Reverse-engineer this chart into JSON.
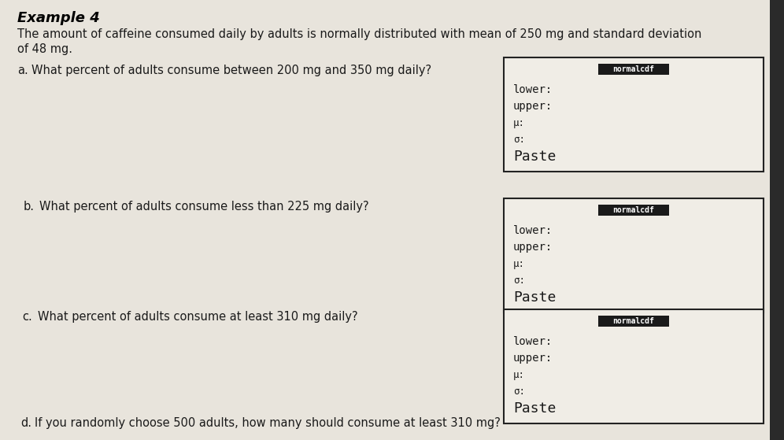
{
  "title": "Example 4",
  "intro_line1": "The amount of caffeine consumed daily by adults is normally distributed with mean of 250 mg and standard deviation",
  "intro_line2": "of 48 mg.",
  "q_a_prefix": "a.",
  "q_a_text": "   What percent of adults consume between 200 mg and 350 mg daily?",
  "q_b_prefix": "b.",
  "q_b_text": "   What percent of adults consume less than 225 mg daily?",
  "q_c_prefix": "c.",
  "q_c_text": "   What percent of adults consume at least 310 mg daily?",
  "q_d_prefix": "d.",
  "q_d_text": "   If you randomly choose 500 adults, how many should consume at least 310 mg?",
  "box_label": "normalcdf",
  "box_lines": [
    "lower:",
    "upper:",
    "μ:",
    "σ:",
    "Paste"
  ],
  "bg_color": "#e8e4dc",
  "box_bg": "#f0ede6",
  "box_border": "#222222",
  "box_label_bg": "#1a1a1a",
  "box_label_fg": "#ffffff",
  "text_color": "#1a1a1a",
  "title_color": "#000000"
}
